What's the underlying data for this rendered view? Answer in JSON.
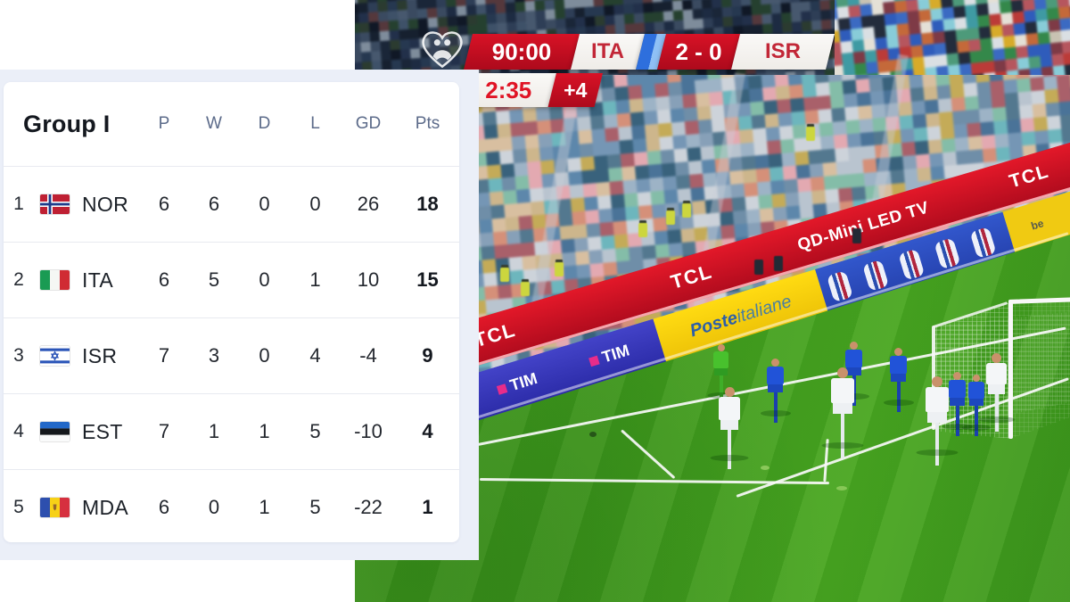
{
  "standings": {
    "title": "Group I",
    "columns": [
      "P",
      "W",
      "D",
      "L",
      "GD",
      "Pts"
    ],
    "rows": [
      {
        "rank": "1",
        "team": "NOR",
        "flag": "norway",
        "p": "6",
        "w": "6",
        "d": "0",
        "l": "0",
        "gd": "26",
        "pts": "18"
      },
      {
        "rank": "2",
        "team": "ITA",
        "flag": "italy",
        "p": "6",
        "w": "5",
        "d": "0",
        "l": "1",
        "gd": "10",
        "pts": "15"
      },
      {
        "rank": "3",
        "team": "ISR",
        "flag": "israel",
        "p": "7",
        "w": "3",
        "d": "0",
        "l": "4",
        "gd": "-4",
        "pts": "9"
      },
      {
        "rank": "4",
        "team": "EST",
        "flag": "estonia",
        "p": "7",
        "w": "1",
        "d": "1",
        "l": "5",
        "gd": "-10",
        "pts": "4"
      },
      {
        "rank": "5",
        "team": "MDA",
        "flag": "moldova",
        "p": "6",
        "w": "0",
        "d": "1",
        "l": "5",
        "gd": "-22",
        "pts": "1"
      }
    ]
  },
  "scoreboard": {
    "match_clock": "90:00",
    "home_team": "ITA",
    "score": "2 - 0",
    "away_team": "ISR",
    "secondary_clock": "2:35",
    "added_time": "+4",
    "colors": {
      "red": "#c60e22",
      "team_text": "#c22737",
      "stripe_blue": "#2e6fdd"
    }
  },
  "broadcast": {
    "logo": "european-qualifiers-heart-logo",
    "ads": {
      "tcl": "TCL",
      "tcl_tagline": "QD-Mini LED TV",
      "poste_bold": "Poste",
      "poste_rest": "italiane",
      "tim": "TIM",
      "side_text": "be"
    }
  }
}
